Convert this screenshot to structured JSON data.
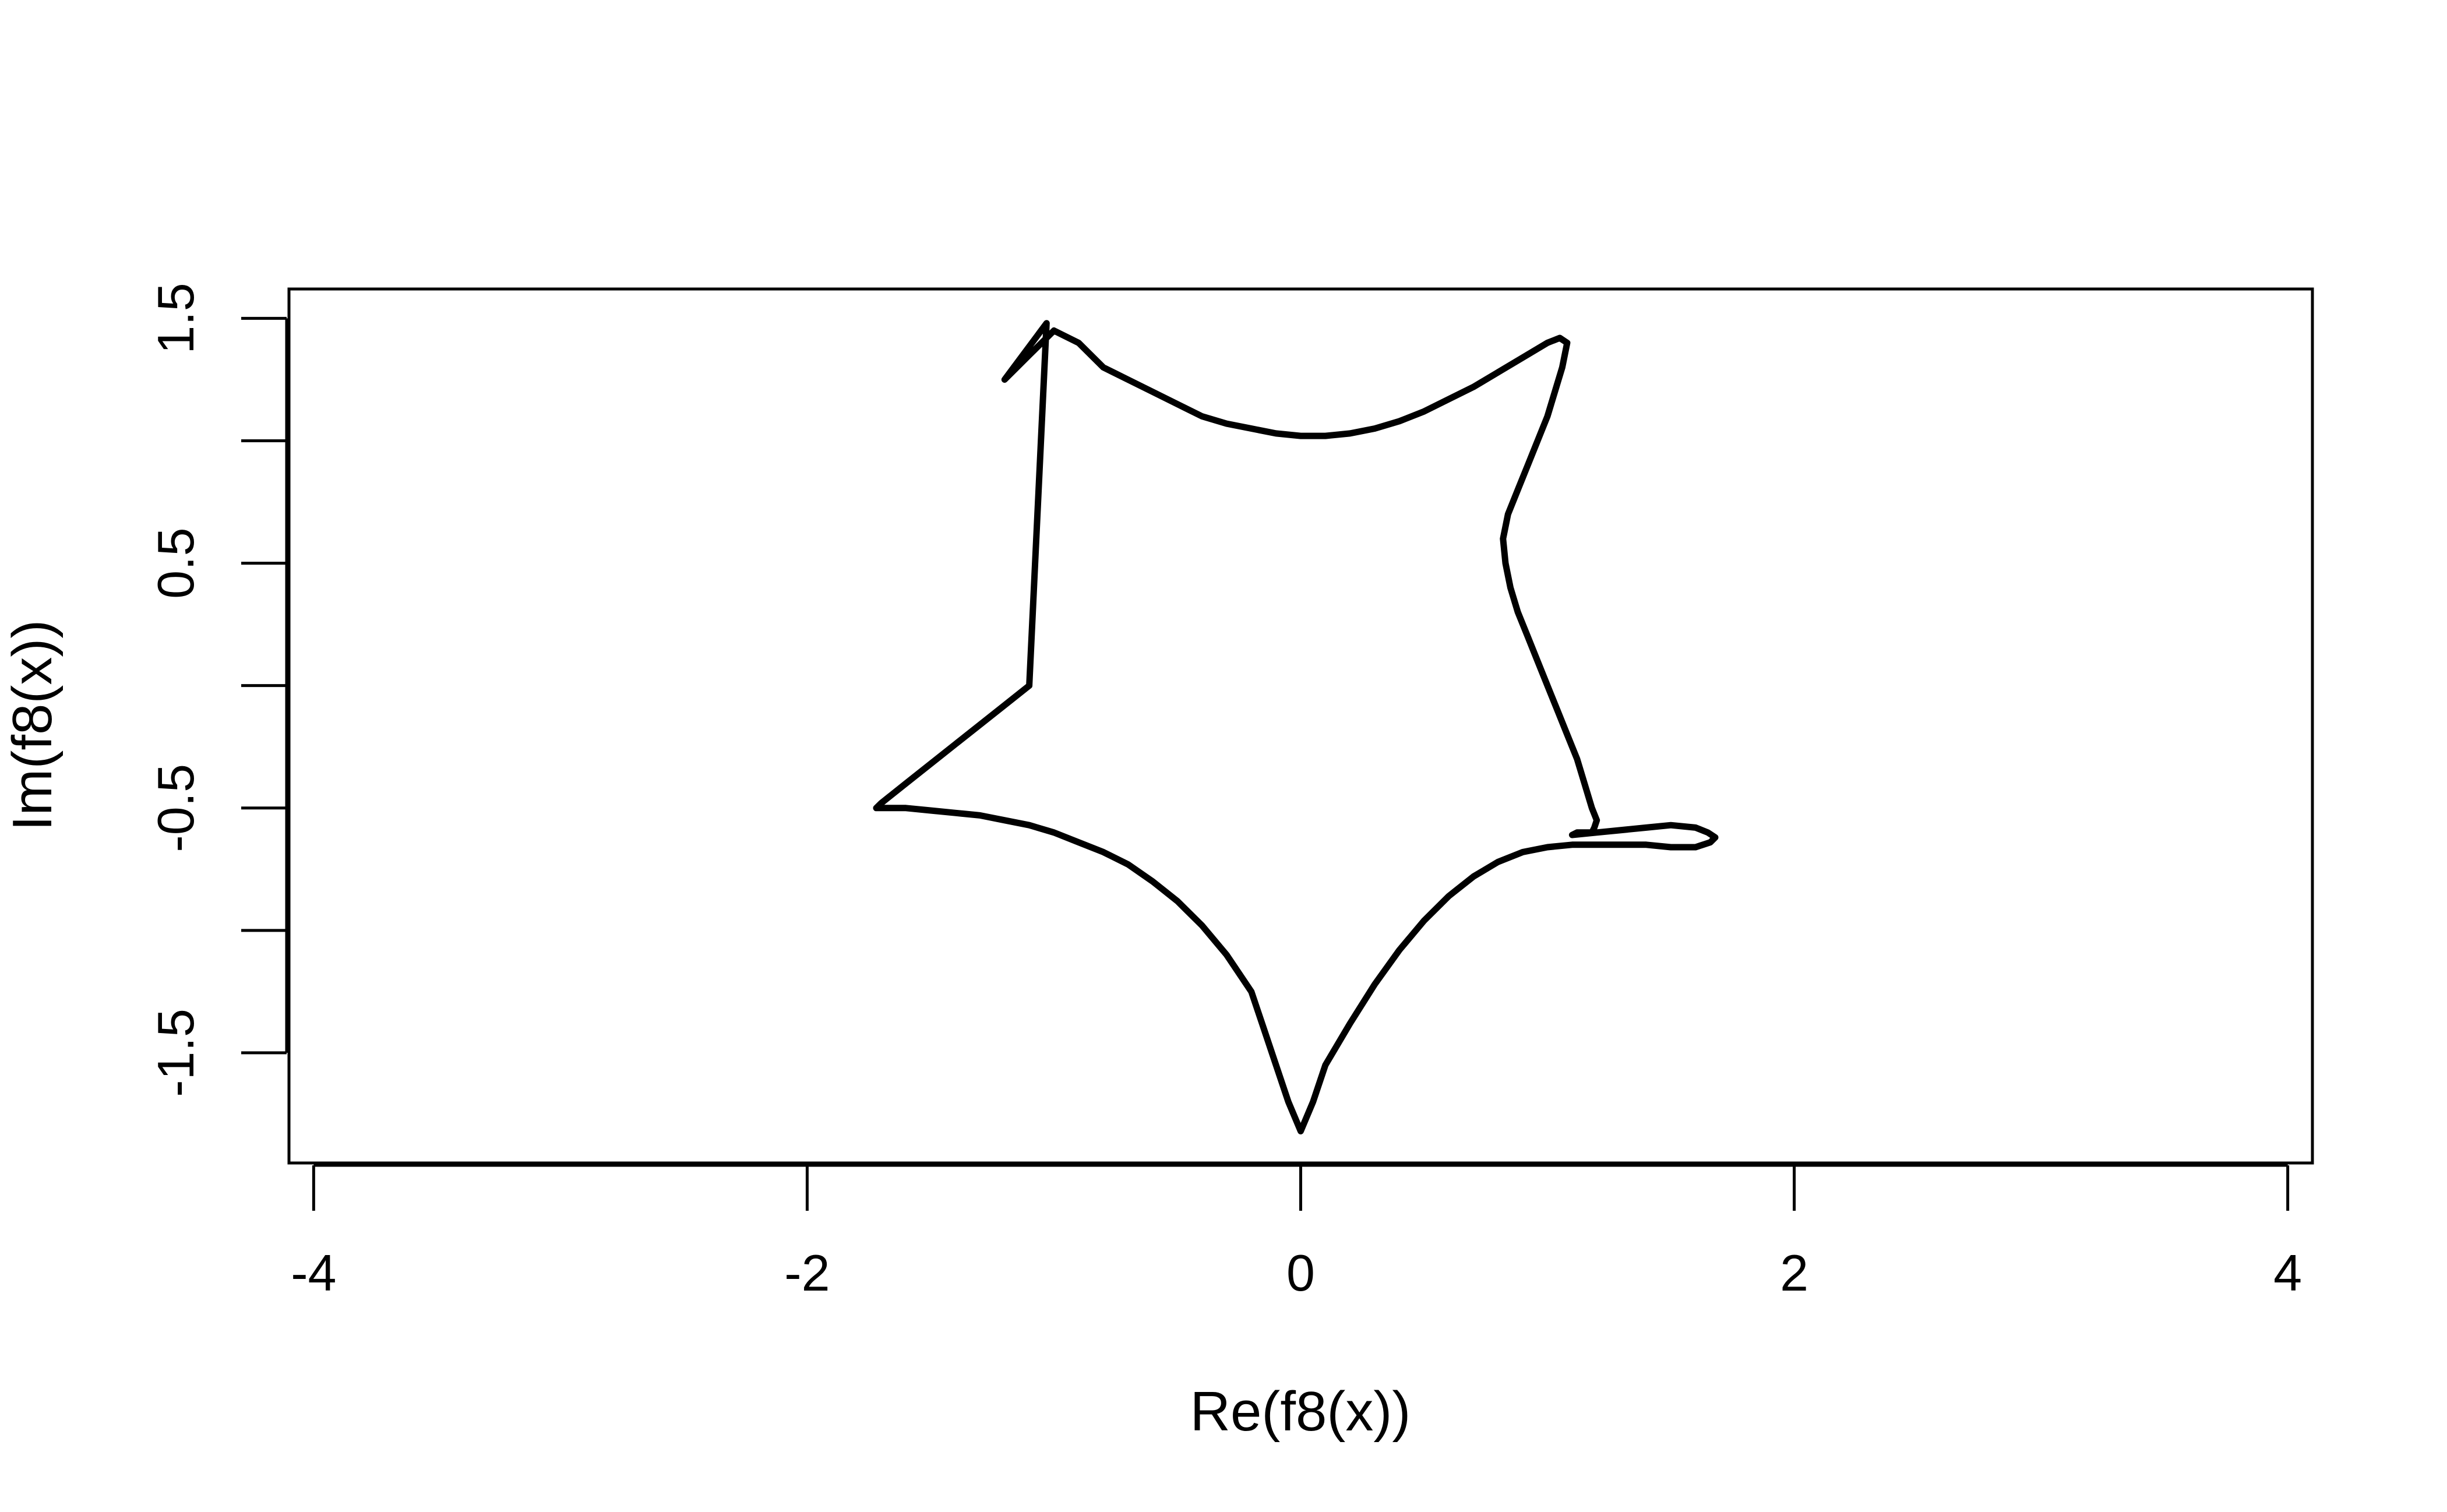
{
  "chart_data": {
    "type": "line",
    "title": "",
    "xlabel": "Re(f8(x))",
    "ylabel": "Im(f8(x))",
    "xlim": [
      -4.1,
      4.1
    ],
    "ylim": [
      -1.95,
      1.62
    ],
    "x_ticks": [
      -4,
      -2,
      0,
      2,
      4
    ],
    "x_tick_labels": [
      "-4",
      "-2",
      "0",
      "2",
      "4"
    ],
    "y_ticks": [
      -1.5,
      -1,
      -0.5,
      0,
      0.5,
      1,
      1.5
    ],
    "y_tick_labels": [
      "-1.5",
      "",
      "-0.5",
      "",
      "0.5",
      "",
      "1.5"
    ],
    "grid": false,
    "legend": "none",
    "series": [
      {
        "x": [
          -1.03,
          -1.2,
          -1.1,
          -1.0,
          -0.9,
          -0.8,
          -0.7,
          -0.6,
          -0.5,
          -0.4,
          -0.3,
          -0.2,
          -0.1,
          0.0,
          0.1,
          0.2,
          0.3,
          0.4,
          0.5,
          0.6,
          0.7,
          0.8,
          0.9,
          1.0,
          1.05,
          1.08,
          1.06,
          1.03,
          1.0,
          0.96,
          0.92,
          0.88,
          0.84,
          0.82,
          0.83,
          0.85,
          0.88,
          0.92,
          0.96,
          1.0,
          1.04,
          1.08,
          1.12,
          1.15,
          1.18,
          1.2,
          1.19,
          1.18,
          1.15,
          1.14,
          1.13,
          1.12,
          1.1,
          1.1,
          1.2,
          1.3,
          1.4,
          1.5,
          1.6,
          1.65,
          1.68,
          1.66,
          1.6,
          1.5,
          1.4,
          1.3,
          1.2,
          1.1,
          1.0,
          0.9,
          0.8,
          0.7,
          0.6,
          0.5,
          0.4,
          0.3,
          0.2,
          0.1,
          0.05,
          0.0,
          -0.05,
          -0.1,
          -0.15,
          -0.2,
          -0.3,
          -0.4,
          -0.5,
          -0.6,
          -0.7,
          -0.8,
          -0.9,
          -1.0,
          -1.1,
          -1.2,
          -1.3,
          -1.4,
          -1.5,
          -1.6,
          -1.65,
          -1.7,
          -1.72,
          -1.7,
          -1.6,
          -1.5,
          -1.4,
          -1.3,
          -1.2,
          -1.1,
          -1.03
        ],
        "y": [
          1.48,
          1.25,
          1.35,
          1.45,
          1.4,
          1.3,
          1.25,
          1.2,
          1.15,
          1.1,
          1.07,
          1.05,
          1.03,
          1.02,
          1.02,
          1.03,
          1.05,
          1.08,
          1.12,
          1.17,
          1.22,
          1.28,
          1.34,
          1.4,
          1.42,
          1.4,
          1.3,
          1.2,
          1.1,
          1.0,
          0.9,
          0.8,
          0.7,
          0.6,
          0.5,
          0.4,
          0.3,
          0.2,
          0.1,
          0.0,
          -0.1,
          -0.2,
          -0.3,
          -0.4,
          -0.5,
          -0.55,
          -0.58,
          -0.6,
          -0.6,
          -0.6,
          -0.6,
          -0.6,
          -0.61,
          -0.61,
          -0.6,
          -0.59,
          -0.58,
          -0.57,
          -0.58,
          -0.6,
          -0.62,
          -0.64,
          -0.66,
          -0.66,
          -0.65,
          -0.65,
          -0.65,
          -0.65,
          -0.66,
          -0.68,
          -0.72,
          -0.78,
          -0.86,
          -0.96,
          -1.08,
          -1.22,
          -1.38,
          -1.55,
          -1.7,
          -1.82,
          -1.7,
          -1.55,
          -1.4,
          -1.25,
          -1.1,
          -0.98,
          -0.88,
          -0.8,
          -0.73,
          -0.68,
          -0.64,
          -0.6,
          -0.57,
          -0.55,
          -0.53,
          -0.52,
          -0.51,
          -0.5,
          -0.5,
          -0.5,
          -0.5,
          -0.48,
          -0.4,
          -0.32,
          -0.24,
          -0.16,
          -0.08,
          0.0,
          1.48
        ]
      }
    ]
  }
}
